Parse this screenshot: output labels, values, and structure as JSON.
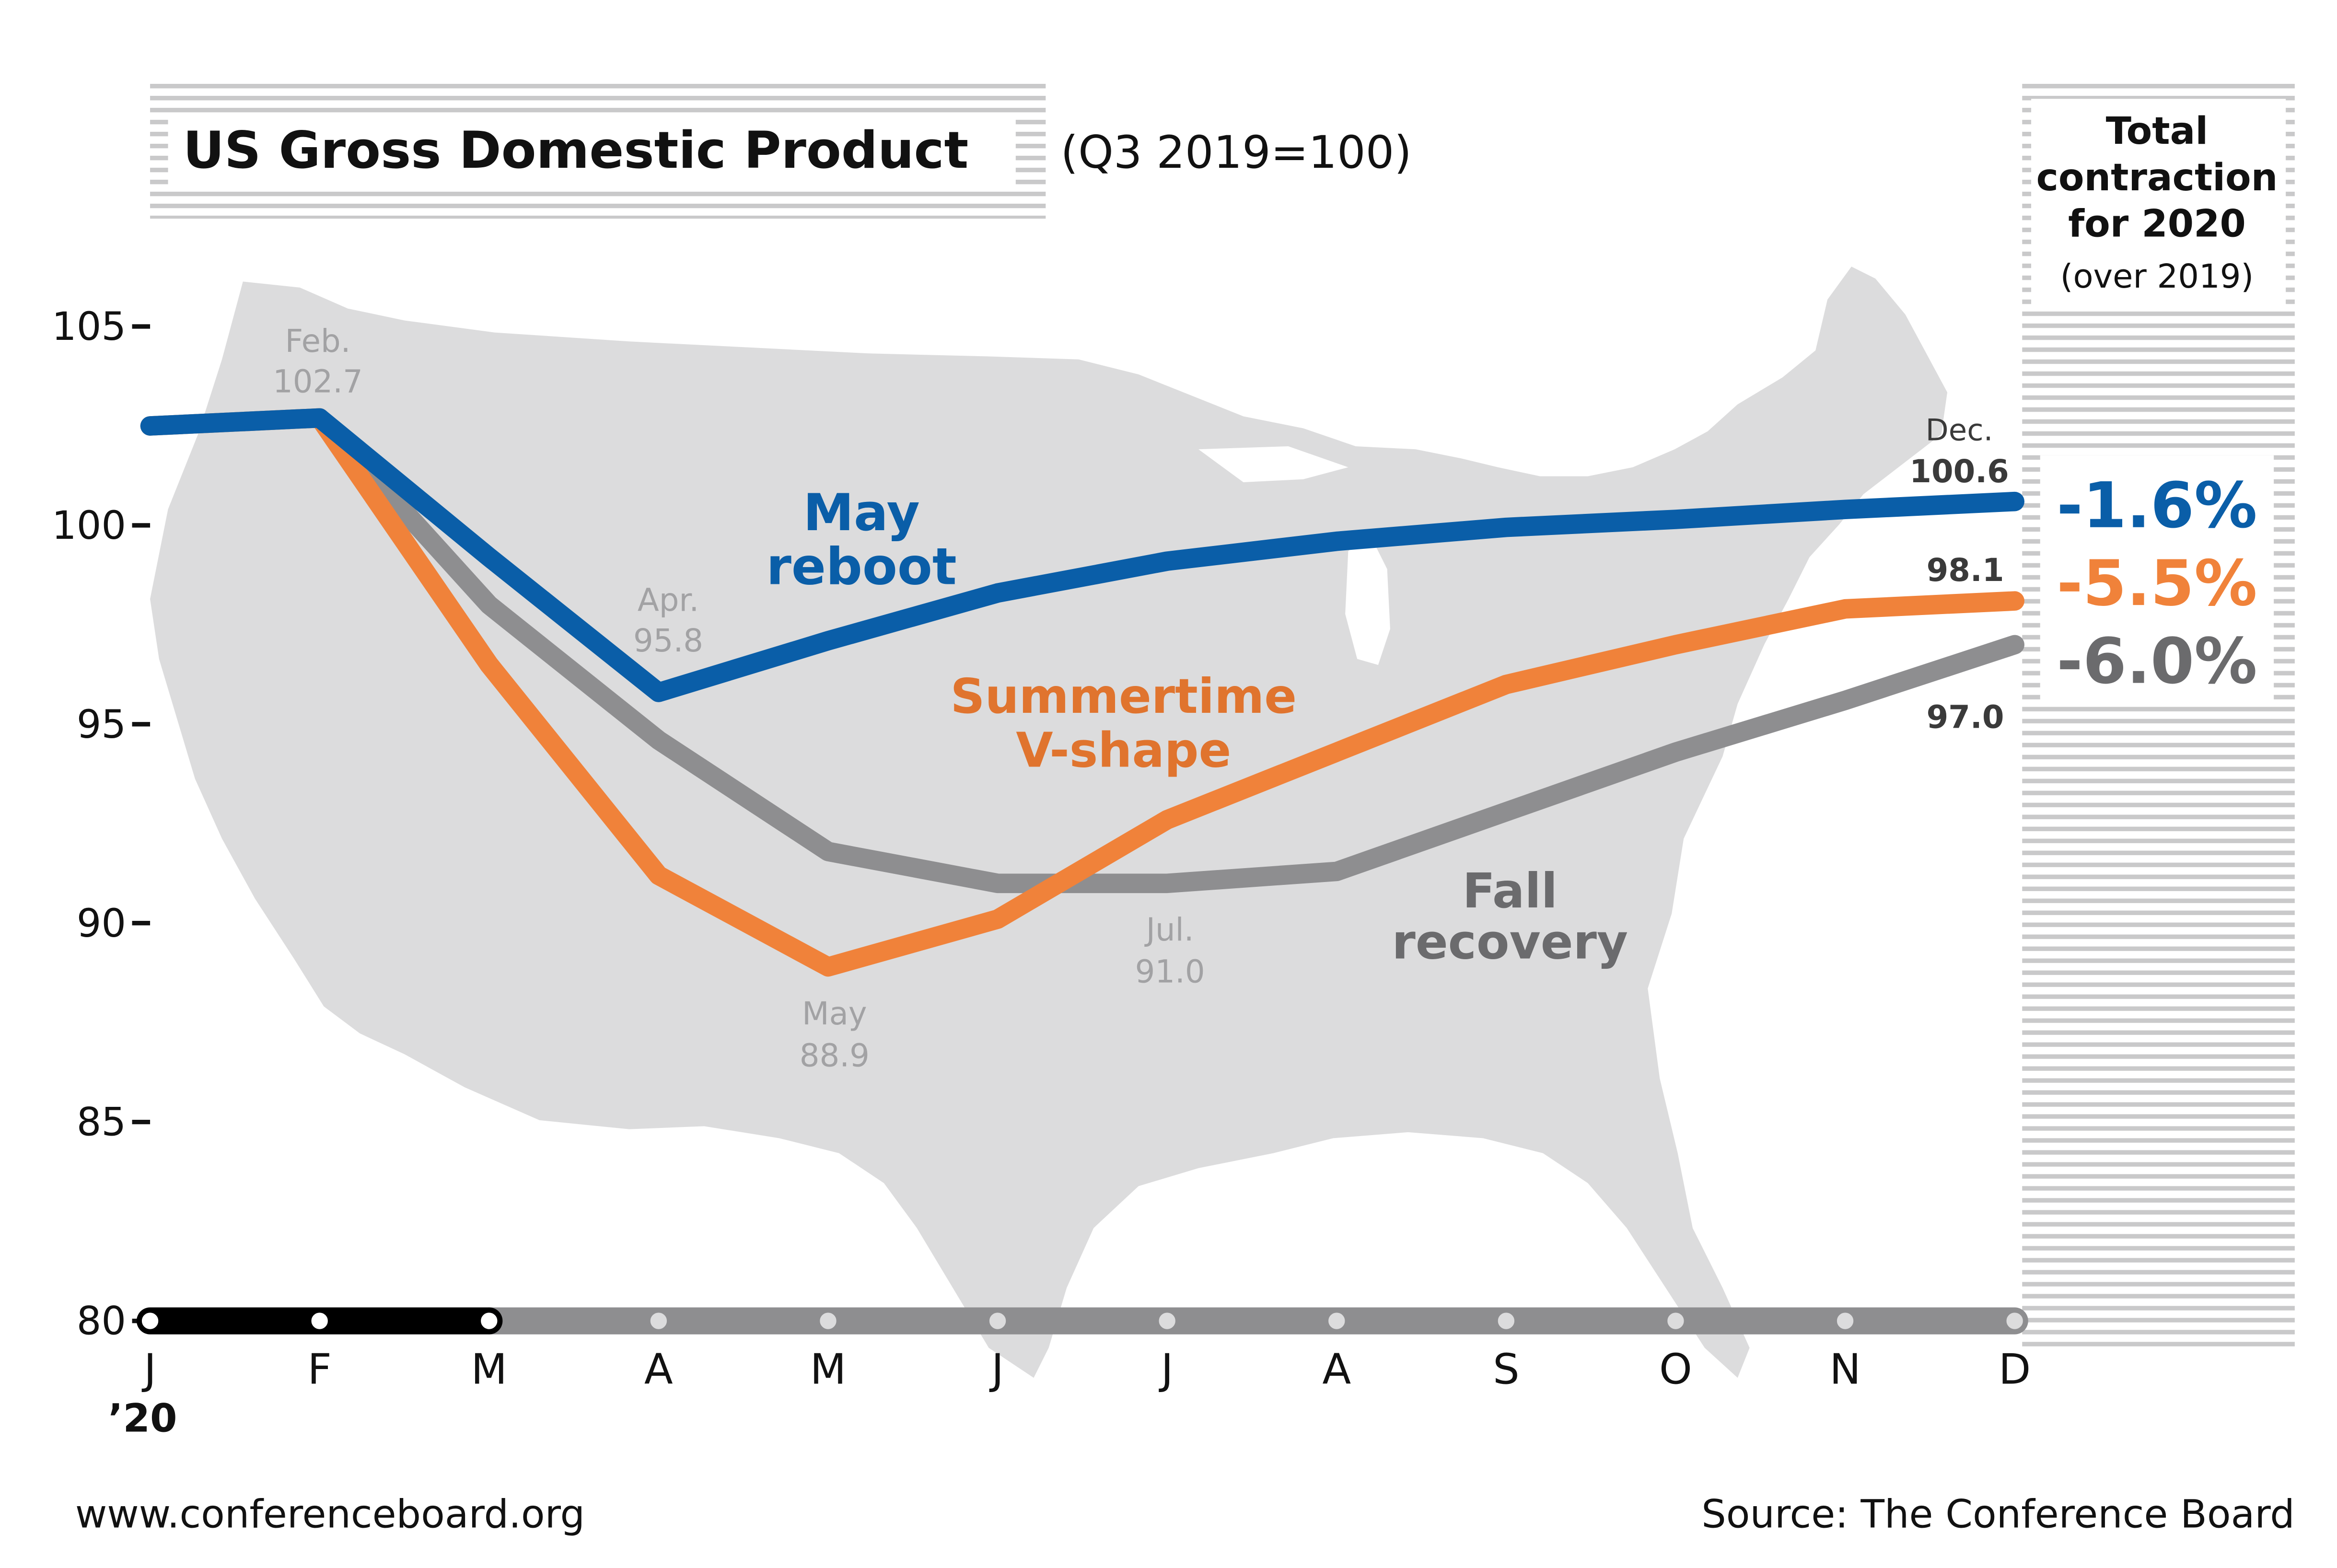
{
  "header": {
    "title": "US Gross Domestic Product",
    "subtitle": "(Q3 2019=100)"
  },
  "right_panel": {
    "line1": "Total",
    "line2": "contraction",
    "line3": "for 2020",
    "line4": "(over 2019)"
  },
  "footer": {
    "url": "www.conferenceboard.org",
    "source": "Source: The Conference Board"
  },
  "colors": {
    "blue": "#0a5ea8",
    "orange": "#f0823a",
    "gray": "#8e8e90",
    "map": "#dcdcdd",
    "stripe": "#c9c9ca",
    "text_gray": "#a2a2a4",
    "text_dark": "#3a3a3a"
  },
  "chart_data": {
    "type": "line",
    "categories": [
      "J",
      "F",
      "M",
      "A",
      "M",
      "J",
      "J",
      "A",
      "S",
      "O",
      "N",
      "D"
    ],
    "year_label": "’20",
    "ylim": [
      80,
      105
    ],
    "yticks": [
      80,
      85,
      90,
      95,
      100,
      105
    ],
    "series": [
      {
        "name": "May reboot",
        "label_line1": "May",
        "label_line2": "reboot",
        "color": "#0a5ea8",
        "values": [
          102.5,
          102.7,
          99.2,
          95.8,
          97.1,
          98.3,
          99.1,
          99.6,
          99.95,
          100.15,
          100.4,
          100.6
        ]
      },
      {
        "name": "Summertime V-shape",
        "label_line1": "Summertime",
        "label_line2": "V-shape",
        "color": "#f0823a",
        "values": [
          102.5,
          102.7,
          96.5,
          91.2,
          88.9,
          90.1,
          92.6,
          94.3,
          96.0,
          97.0,
          97.9,
          98.1
        ]
      },
      {
        "name": "Fall recovery",
        "label_line1": "Fall",
        "label_line2": "recovery",
        "color": "#8e8e90",
        "values": [
          102.5,
          102.7,
          98.0,
          94.6,
          91.8,
          91.0,
          91.0,
          91.3,
          92.8,
          94.3,
          95.6,
          97.0
        ]
      }
    ],
    "annotations": [
      {
        "line1": "Feb.",
        "line2": "102.7"
      },
      {
        "line1": "Apr.",
        "line2": "95.8"
      },
      {
        "line1": "May",
        "line2": "88.9"
      },
      {
        "line1": "Jul.",
        "line2": "91.0"
      },
      {
        "line1": "Dec.",
        "line2": "100.6"
      },
      {
        "line1": "98.1",
        "line2": ""
      },
      {
        "line1": "97.0",
        "line2": ""
      }
    ],
    "totals": [
      "-1.6%",
      "-5.5%",
      "-6.0%"
    ],
    "timeline_months_dark": 3
  }
}
